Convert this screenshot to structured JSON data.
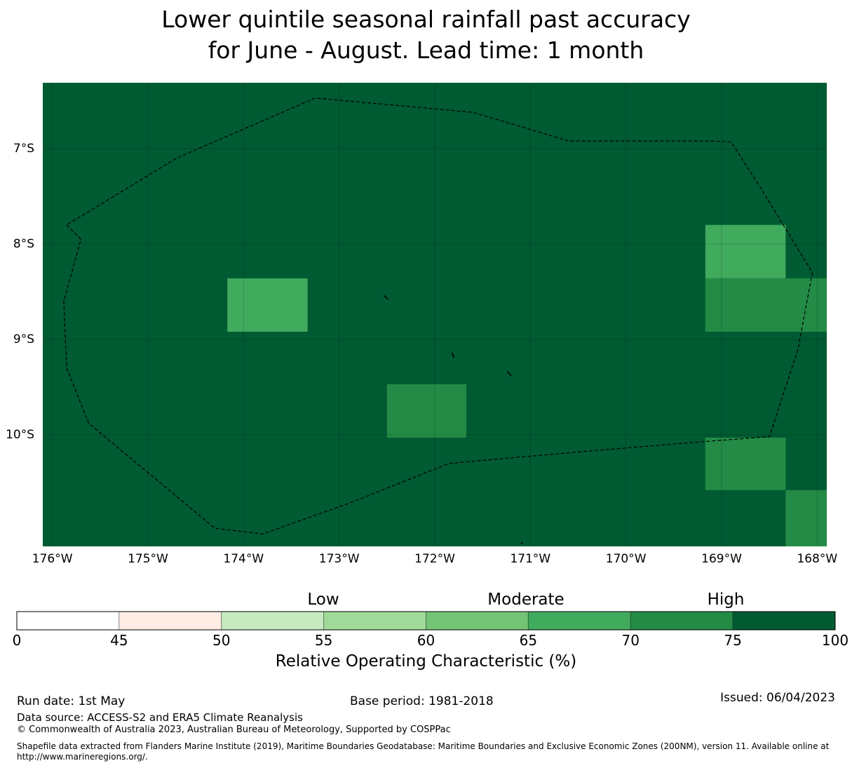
{
  "title": {
    "line1": "Lower quintile seasonal rainfall past accuracy",
    "line2": "for June - August. Lead time: 1 month"
  },
  "map": {
    "lon_range": [
      -176.1,
      -167.9
    ],
    "lat_range": [
      -11.17,
      -6.31
    ],
    "background_color": "#005a32",
    "gridlines": true,
    "lon_labels": [
      "176°W",
      "175°W",
      "174°W",
      "173°W",
      "172°W",
      "171°W",
      "170°W",
      "169°W",
      "168°W"
    ],
    "lat_labels": [
      "7°S",
      "8°S",
      "9°S",
      "10°S"
    ],
    "lon_ticks": [
      -176,
      -175,
      -174,
      -173,
      -172,
      -171,
      -170,
      -169,
      -168
    ],
    "lat_ticks": [
      -7,
      -8,
      -9,
      -10
    ],
    "cells": [
      {
        "lon_min": -174.17,
        "lon_max": -173.33,
        "lat_min": -8.92,
        "lat_max": -8.36,
        "range": "65-70"
      },
      {
        "lon_min": -172.5,
        "lon_max": -171.67,
        "lat_min": -10.03,
        "lat_max": -9.47,
        "range": "70-75"
      },
      {
        "lon_min": -169.17,
        "lon_max": -168.33,
        "lat_min": -8.36,
        "lat_max": -7.8,
        "range": "65-70"
      },
      {
        "lon_min": -169.17,
        "lon_max": -167.9,
        "lat_min": -8.92,
        "lat_max": -8.36,
        "range": "70-75"
      },
      {
        "lon_min": -169.17,
        "lon_max": -168.33,
        "lat_min": -10.58,
        "lat_max": -10.03,
        "range": "70-75"
      },
      {
        "lon_min": -168.33,
        "lon_max": -167.9,
        "lat_min": -11.17,
        "lat_max": -10.58,
        "range": "70-75"
      }
    ],
    "eez_boundary": [
      [
        -175.85,
        -7.8
      ],
      [
        -175.7,
        -7.95
      ],
      [
        -175.88,
        -8.6
      ],
      [
        -175.85,
        -9.3
      ],
      [
        -175.62,
        -9.88
      ],
      [
        -174.3,
        -10.98
      ],
      [
        -173.8,
        -11.04
      ],
      [
        -172.9,
        -10.72
      ],
      [
        -171.85,
        -10.3
      ],
      [
        -170.5,
        -10.18
      ],
      [
        -169.3,
        -10.08
      ],
      [
        -168.5,
        -10.02
      ],
      [
        -168.2,
        -9.1
      ],
      [
        -168.05,
        -8.3
      ],
      [
        -168.6,
        -7.4
      ],
      [
        -168.9,
        -6.93
      ],
      [
        -169.1,
        -6.92
      ],
      [
        -170.6,
        -6.92
      ],
      [
        -171.6,
        -6.62
      ],
      [
        -173.25,
        -6.47
      ],
      [
        -174.7,
        -7.1
      ],
      [
        -175.85,
        -7.8
      ]
    ],
    "islands": [
      [
        [
          -172.53,
          -8.54
        ],
        [
          -172.49,
          -8.58
        ]
      ],
      [
        [
          -171.82,
          -9.14
        ],
        [
          -171.8,
          -9.19
        ]
      ],
      [
        [
          -171.24,
          -9.34
        ],
        [
          -171.2,
          -9.38
        ]
      ],
      [
        [
          -171.1,
          -11.13
        ],
        [
          -171.08,
          -11.14
        ]
      ]
    ]
  },
  "colorbar": {
    "bins": [
      {
        "from": 0,
        "to": 45,
        "color": "#ffffff"
      },
      {
        "from": 45,
        "to": 50,
        "color": "#ffece4"
      },
      {
        "from": 50,
        "to": 55,
        "color": "#c7e9c0"
      },
      {
        "from": 55,
        "to": 60,
        "color": "#a1d99b"
      },
      {
        "from": 60,
        "to": 65,
        "color": "#74c476"
      },
      {
        "from": 65,
        "to": 70,
        "color": "#41ab5d"
      },
      {
        "from": 70,
        "to": 75,
        "color": "#238b45"
      },
      {
        "from": 75,
        "to": 100,
        "color": "#005a32"
      }
    ],
    "tick_labels": [
      "0",
      "45",
      "50",
      "55",
      "60",
      "65",
      "70",
      "75",
      "100"
    ],
    "categories": [
      "Low",
      "Moderate",
      "High"
    ],
    "label": "Relative Operating Characteristic (%)"
  },
  "footer": {
    "run_date": "Run date: 1st May",
    "base_period": "Base period: 1981-2018",
    "issued": "Issued: 06/04/2023",
    "data_source": "Data source: ACCESS-S2 and ERA5 Climate Reanalysis",
    "copyright": "© Commonwealth of Australia 2023, Australian Bureau of Meteorology, Supported by COSPPac",
    "shapefile": "Shapefile data extracted from Flanders Marine Institute (2019), Maritime Boundaries Geodatabase: Maritime Boundaries and Exclusive Economic Zones (200NM), version 11. Available online at http://www.marineregions.org/."
  }
}
